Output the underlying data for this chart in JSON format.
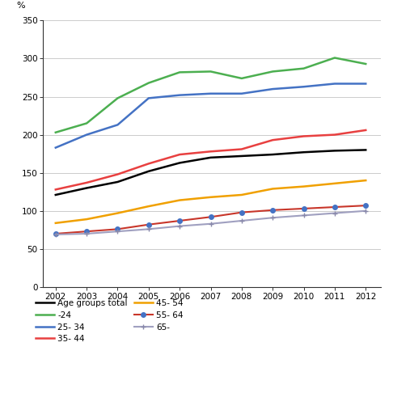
{
  "years": [
    2002,
    2003,
    2004,
    2005,
    2006,
    2007,
    2008,
    2009,
    2010,
    2011,
    2012
  ],
  "series": {
    "Age groups total": [
      121,
      130,
      138,
      152,
      163,
      170,
      172,
      174,
      177,
      179,
      180
    ],
    "-24": [
      203,
      215,
      248,
      268,
      282,
      283,
      274,
      283,
      287,
      301,
      293
    ],
    "25- 34": [
      183,
      200,
      213,
      248,
      252,
      254,
      254,
      260,
      263,
      267,
      267
    ],
    "35- 44": [
      128,
      137,
      148,
      162,
      174,
      178,
      181,
      193,
      198,
      200,
      206
    ],
    "45- 54": [
      84,
      89,
      97,
      106,
      114,
      118,
      121,
      129,
      132,
      136,
      140
    ],
    "55- 64": [
      70,
      73,
      76,
      82,
      87,
      92,
      98,
      101,
      103,
      105,
      107
    ],
    "65-": [
      69,
      70,
      73,
      76,
      80,
      83,
      87,
      91,
      94,
      97,
      100
    ]
  },
  "line_colors": {
    "Age groups total": "#000000",
    "-24": "#4caf50",
    "25- 34": "#4472c4",
    "35- 44": "#e84040",
    "45- 54": "#f0a000",
    "55- 64": "#c8362a",
    "65-": "#a0a0c0"
  },
  "marker_colors": {
    "55- 64": "#4472c4",
    "65-": "#8888aa"
  },
  "markers": {
    "Age groups total": "None",
    "-24": "None",
    "25- 34": "None",
    "35- 44": "None",
    "45- 54": "None",
    "55- 64": "o",
    "65-": "+"
  },
  "linewidths": {
    "Age groups total": 1.8,
    "-24": 1.8,
    "25- 34": 1.8,
    "35- 44": 1.8,
    "45- 54": 1.8,
    "55- 64": 1.5,
    "65-": 1.5
  },
  "legend_order": [
    "Age groups total",
    "-24",
    "25- 34",
    "35- 44",
    "45- 54",
    "55- 64",
    "65-"
  ],
  "ylim": [
    0,
    350
  ],
  "yticks": [
    0,
    50,
    100,
    150,
    200,
    250,
    300,
    350
  ],
  "ylabel": "%",
  "xlim_min": 2001.6,
  "xlim_max": 2012.5
}
